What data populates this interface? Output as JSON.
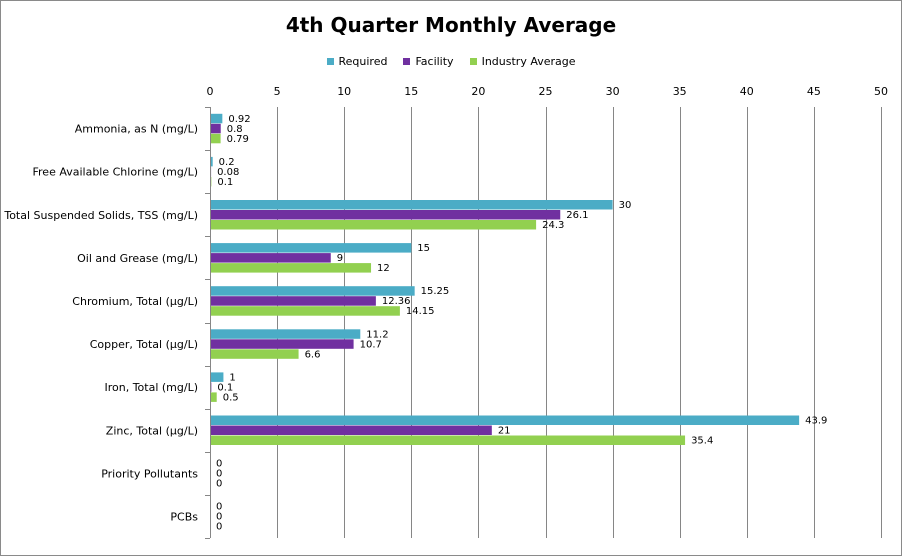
{
  "chart_data": {
    "type": "bar",
    "orientation": "horizontal",
    "title": "4th Quarter Monthly Average",
    "xlim": [
      0,
      50
    ],
    "x_ticks": [
      0,
      5,
      10,
      15,
      20,
      25,
      30,
      35,
      40,
      45,
      50
    ],
    "grid": true,
    "legend_position": "top",
    "categories": [
      "Ammonia, as N (mg/L)",
      "Free Available Chlorine (mg/L)",
      "Total Suspended Solids, TSS (mg/L)",
      "Oil and Grease (mg/L)",
      "Chromium, Total (µg/L)",
      "Copper, Total (µg/L)",
      "Iron, Total (mg/L)",
      "Zinc, Total (µg/L)",
      "Priority Pollutants",
      "PCBs"
    ],
    "series": [
      {
        "name": "Required",
        "color": "#4bacc6",
        "values": [
          0.92,
          0.2,
          30,
          15,
          15.25,
          11.2,
          1,
          43.9,
          0,
          0
        ]
      },
      {
        "name": "Facility",
        "color": "#7030a0",
        "values": [
          0.8,
          0.08,
          26.1,
          9,
          12.36,
          10.7,
          0.1,
          21,
          0,
          0
        ]
      },
      {
        "name": "Industry Average",
        "color": "#92d050",
        "values": [
          0.79,
          0.1,
          24.3,
          12,
          14.15,
          6.6,
          0.5,
          35.4,
          0,
          0
        ]
      }
    ]
  }
}
